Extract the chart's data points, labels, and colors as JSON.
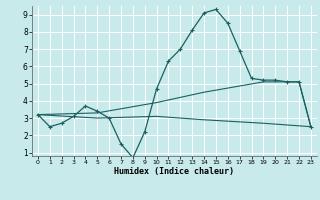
{
  "xlabel": "Humidex (Indice chaleur)",
  "xlim": [
    -0.5,
    23.5
  ],
  "ylim": [
    0.8,
    9.5
  ],
  "yticks": [
    1,
    2,
    3,
    4,
    5,
    6,
    7,
    8,
    9
  ],
  "xticks": [
    0,
    1,
    2,
    3,
    4,
    5,
    6,
    7,
    8,
    9,
    10,
    11,
    12,
    13,
    14,
    15,
    16,
    17,
    18,
    19,
    20,
    21,
    22,
    23
  ],
  "background_color": "#c8eaea",
  "grid_color": "#ffffff",
  "line_color": "#1a6060",
  "line1_x": [
    0,
    1,
    2,
    3,
    4,
    5,
    6,
    7,
    8,
    9,
    10,
    11,
    12,
    13,
    14,
    15,
    16,
    17,
    18,
    19,
    20,
    21,
    22,
    23
  ],
  "line1_y": [
    3.2,
    2.5,
    2.7,
    3.1,
    3.7,
    3.4,
    3.0,
    1.5,
    0.7,
    2.2,
    4.7,
    6.3,
    7.0,
    8.1,
    9.1,
    9.3,
    8.5,
    6.9,
    5.3,
    5.2,
    5.2,
    5.1,
    5.1,
    2.5
  ],
  "line2_x": [
    0,
    5,
    10,
    14,
    19,
    22,
    23
  ],
  "line2_y": [
    3.2,
    3.3,
    3.9,
    4.5,
    5.1,
    5.1,
    2.5
  ],
  "line3_x": [
    0,
    5,
    10,
    14,
    19,
    22,
    23
  ],
  "line3_y": [
    3.2,
    3.0,
    3.1,
    2.9,
    2.7,
    2.55,
    2.5
  ]
}
